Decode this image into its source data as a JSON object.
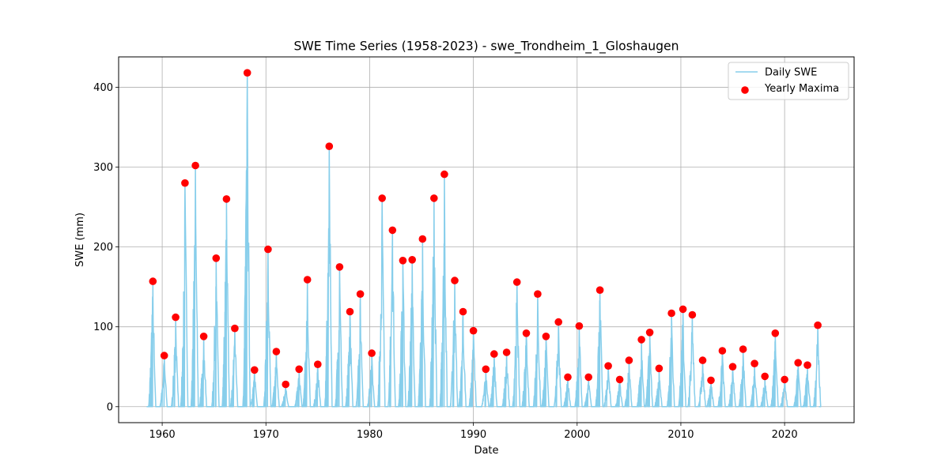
{
  "chart_data": {
    "type": "line",
    "title": "SWE Time Series (1958-2023) - swe_Trondheim_1_Gloshaugen",
    "xlabel": "Date",
    "ylabel": "SWE (mm)",
    "xlim": [
      1955.8,
      2026.7
    ],
    "ylim": [
      -20,
      438
    ],
    "xticks": [
      1960,
      1970,
      1980,
      1990,
      2000,
      2010,
      2020
    ],
    "yticks": [
      0,
      100,
      200,
      300,
      400
    ],
    "grid": true,
    "legend_position": "top-right",
    "series": [
      {
        "name": "Daily SWE",
        "kind": "line",
        "color": "#87ceeb",
        "start_year": 1958.5,
        "end_year": 2023.3,
        "note": "Daily SWE peaks each winter at the yearly maximum and melts to 0 each summer"
      },
      {
        "name": "Yearly Maxima",
        "kind": "scatter",
        "color": "#ff0000",
        "points": [
          {
            "x": 1959.1,
            "y": 157
          },
          {
            "x": 1960.2,
            "y": 64
          },
          {
            "x": 1961.3,
            "y": 112
          },
          {
            "x": 1962.2,
            "y": 280
          },
          {
            "x": 1963.2,
            "y": 302
          },
          {
            "x": 1964.0,
            "y": 88
          },
          {
            "x": 1965.2,
            "y": 186
          },
          {
            "x": 1966.2,
            "y": 260
          },
          {
            "x": 1967.0,
            "y": 98
          },
          {
            "x": 1968.2,
            "y": 418
          },
          {
            "x": 1968.9,
            "y": 46
          },
          {
            "x": 1970.2,
            "y": 197
          },
          {
            "x": 1971.0,
            "y": 69
          },
          {
            "x": 1971.9,
            "y": 28
          },
          {
            "x": 1973.2,
            "y": 47
          },
          {
            "x": 1974.0,
            "y": 159
          },
          {
            "x": 1975.0,
            "y": 53
          },
          {
            "x": 1976.1,
            "y": 326
          },
          {
            "x": 1977.1,
            "y": 175
          },
          {
            "x": 1978.1,
            "y": 119
          },
          {
            "x": 1979.1,
            "y": 141
          },
          {
            "x": 1980.2,
            "y": 67
          },
          {
            "x": 1981.2,
            "y": 261
          },
          {
            "x": 1982.2,
            "y": 221
          },
          {
            "x": 1983.2,
            "y": 183
          },
          {
            "x": 1984.1,
            "y": 184
          },
          {
            "x": 1985.1,
            "y": 210
          },
          {
            "x": 1986.2,
            "y": 261
          },
          {
            "x": 1987.2,
            "y": 291
          },
          {
            "x": 1988.2,
            "y": 158
          },
          {
            "x": 1989.0,
            "y": 119
          },
          {
            "x": 1990.0,
            "y": 95
          },
          {
            "x": 1991.2,
            "y": 47
          },
          {
            "x": 1992.0,
            "y": 66
          },
          {
            "x": 1993.2,
            "y": 68
          },
          {
            "x": 1994.2,
            "y": 156
          },
          {
            "x": 1995.1,
            "y": 92
          },
          {
            "x": 1996.2,
            "y": 141
          },
          {
            "x": 1997.0,
            "y": 88
          },
          {
            "x": 1998.2,
            "y": 106
          },
          {
            "x": 1999.1,
            "y": 37
          },
          {
            "x": 2000.2,
            "y": 101
          },
          {
            "x": 2001.1,
            "y": 37
          },
          {
            "x": 2002.2,
            "y": 146
          },
          {
            "x": 2003.0,
            "y": 51
          },
          {
            "x": 2004.1,
            "y": 34
          },
          {
            "x": 2005.0,
            "y": 58
          },
          {
            "x": 2006.2,
            "y": 84
          },
          {
            "x": 2007.0,
            "y": 93
          },
          {
            "x": 2007.9,
            "y": 48
          },
          {
            "x": 2009.1,
            "y": 117
          },
          {
            "x": 2010.2,
            "y": 122
          },
          {
            "x": 2011.1,
            "y": 115
          },
          {
            "x": 2012.1,
            "y": 58
          },
          {
            "x": 2012.9,
            "y": 33
          },
          {
            "x": 2014.0,
            "y": 70
          },
          {
            "x": 2015.0,
            "y": 50
          },
          {
            "x": 2016.0,
            "y": 72
          },
          {
            "x": 2017.1,
            "y": 54
          },
          {
            "x": 2018.1,
            "y": 38
          },
          {
            "x": 2019.1,
            "y": 92
          },
          {
            "x": 2020.0,
            "y": 34
          },
          {
            "x": 2021.3,
            "y": 55
          },
          {
            "x": 2022.2,
            "y": 52
          },
          {
            "x": 2023.2,
            "y": 102
          }
        ]
      }
    ]
  }
}
